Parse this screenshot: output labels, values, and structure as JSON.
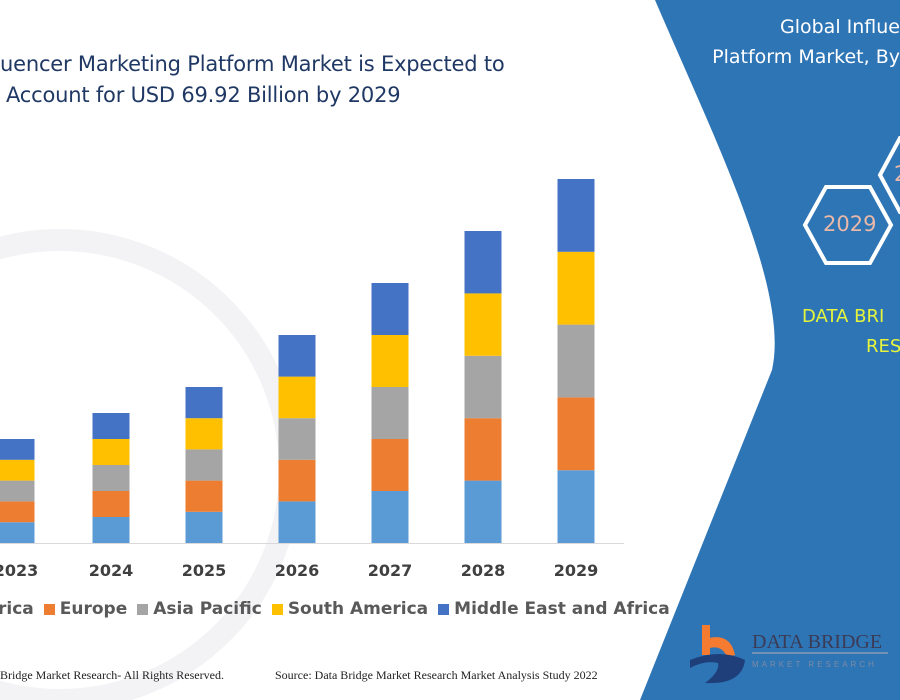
{
  "title": {
    "line1": "uencer Marketing Platform Market is Expected to",
    "line2": "Account for USD 69.92 Billion by 2029"
  },
  "chart_data": {
    "type": "bar",
    "stacked": true,
    "categories": [
      "2023",
      "2024",
      "2025",
      "2026",
      "2027",
      "2028",
      "2029"
    ],
    "series": [
      {
        "name": "rica",
        "color": "#5B9BD5",
        "values": [
          4,
          5,
          6,
          8,
          10,
          12,
          14
        ]
      },
      {
        "name": "Europe",
        "color": "#ED7D31",
        "values": [
          4,
          5,
          6,
          8,
          10,
          12,
          14
        ]
      },
      {
        "name": "Asia Pacific",
        "color": "#A5A5A5",
        "values": [
          4,
          5,
          6,
          8,
          10,
          12,
          14
        ]
      },
      {
        "name": "South America",
        "color": "#FFC000",
        "values": [
          4,
          5,
          6,
          8,
          10,
          12,
          14
        ]
      },
      {
        "name": "Middle East and Africa",
        "color": "#4472C4",
        "values": [
          4,
          5,
          6,
          8,
          10,
          12,
          14
        ]
      }
    ],
    "xlabel": "",
    "ylabel": "",
    "y_axis_shown": false,
    "grid": false,
    "legend_position": "bottom"
  },
  "footer": {
    "copyright": "Bridge Market Research- All Rights Reserved.",
    "source": "Source: Data Bridge Market Research Market Analysis Study 2022"
  },
  "panel": {
    "color": "#2E75B6",
    "title_line1": "Global Influe",
    "title_line2": "Platform Market, By",
    "hex_year": "2029",
    "hex_partial": "2",
    "brand_line1": "DATA BRI",
    "brand_line2": "RES",
    "logo_text": "DATA BRIDGE",
    "logo_subtext": "MARKET RESEARCH"
  }
}
